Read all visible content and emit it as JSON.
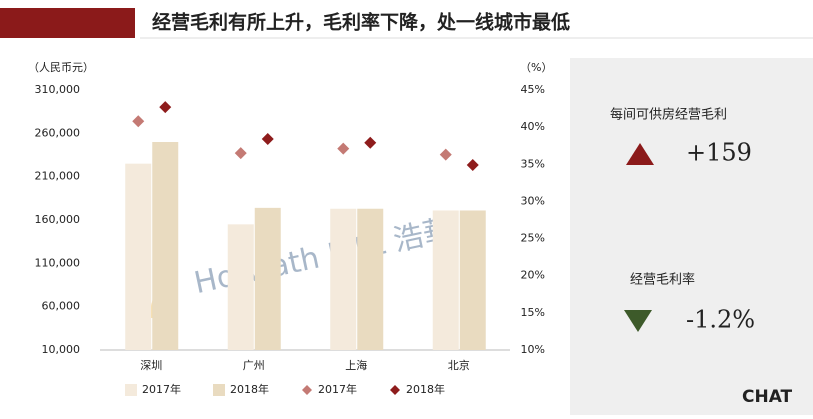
{
  "chart_data": {
    "type": "bar_dot",
    "title": "经营毛利有所上升，毛利率下降，处一线城市最低",
    "y_label": "（人民币元）",
    "y2_label": "（%）",
    "categories": [
      "深圳",
      "广州",
      "上海",
      "北京"
    ],
    "series": [
      {
        "name": "2017年",
        "kind": "bar",
        "color": "#f4eadc",
        "values": [
          225000,
          155000,
          173000,
          171000
        ]
      },
      {
        "name": "2018年",
        "kind": "bar",
        "color": "#e9dbc0",
        "values": [
          250000,
          174000,
          173000,
          171000
        ]
      },
      {
        "name": "2017年",
        "kind": "diamond",
        "axis": "y2",
        "color": "#c47a74",
        "values": [
          40.8,
          36.5,
          37.1,
          36.3
        ]
      },
      {
        "name": "2018年",
        "kind": "diamond",
        "axis": "y2",
        "color": "#8e1c1c",
        "values": [
          42.7,
          38.4,
          37.9,
          34.9
        ]
      }
    ],
    "ylim": [
      10000,
      310000
    ],
    "yticks": [
      {
        "value": 10000,
        "label": "10,000"
      },
      {
        "value": 60000,
        "label": "60,000"
      },
      {
        "value": 110000,
        "label": "110,000"
      },
      {
        "value": 160000,
        "label": "160,000"
      },
      {
        "value": 210000,
        "label": "210,000"
      },
      {
        "value": 260000,
        "label": "260,000"
      },
      {
        "value": 310000,
        "label": "310,000"
      }
    ],
    "y2lim": [
      10,
      45
    ],
    "y2ticks": [
      {
        "value": 10,
        "label": "10%"
      },
      {
        "value": 15,
        "label": "15%"
      },
      {
        "value": 20,
        "label": "20%"
      },
      {
        "value": 25,
        "label": "25%"
      },
      {
        "value": 30,
        "label": "30%"
      },
      {
        "value": 35,
        "label": "35%"
      },
      {
        "value": 40,
        "label": "40%"
      },
      {
        "value": 45,
        "label": "45%"
      }
    ],
    "watermark": "Horwath HTL 浩華",
    "panel": [
      {
        "label": "每间可供房经营毛利",
        "value": "+159"
      },
      {
        "label": "经营毛利率",
        "value": "-1.2%"
      }
    ],
    "logo": "CHAT"
  }
}
